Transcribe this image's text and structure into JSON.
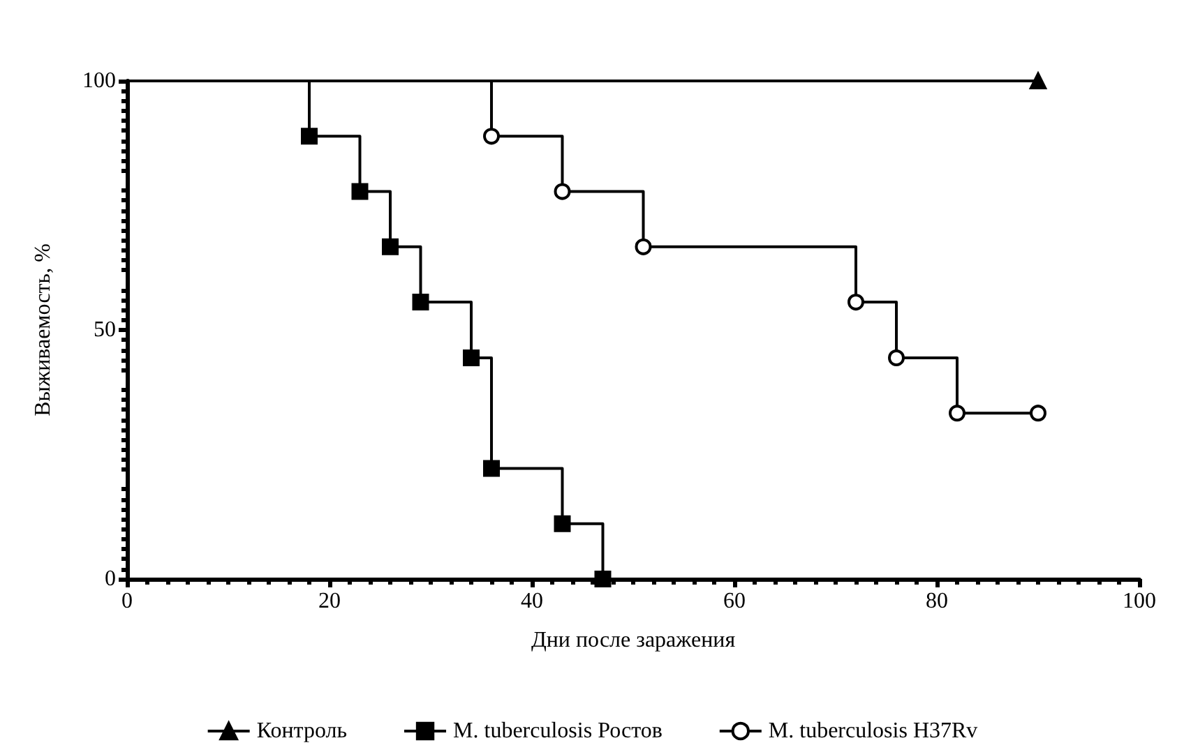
{
  "chart_data": {
    "type": "step",
    "xlabel": "Дни после заражения",
    "ylabel": "Выживаемость, %",
    "xlim": [
      0,
      100
    ],
    "xticks": [
      0,
      20,
      40,
      60,
      80,
      100
    ],
    "ylim": [
      0,
      100
    ],
    "yticks": [
      0,
      50,
      100
    ],
    "grid": false,
    "legend": "bottom",
    "line_style": "solid",
    "series": [
      {
        "name": "Контроль",
        "color": "#000000",
        "marker": "triangle",
        "x": [
          0,
          90
        ],
        "values": [
          100,
          100
        ]
      },
      {
        "name": "M. tuberculosis Ростов",
        "color": "#000000",
        "marker": "square",
        "x": [
          0,
          18,
          23,
          26,
          29,
          34,
          36,
          43,
          47
        ],
        "values": [
          100,
          88.9,
          77.8,
          66.7,
          55.6,
          44.4,
          22.2,
          11.1,
          0
        ]
      },
      {
        "name": "M. tuberculosis H37Rv",
        "color": "#000000",
        "marker": "circle",
        "x": [
          0,
          36,
          43,
          51,
          72,
          76,
          82,
          90
        ],
        "values": [
          100,
          88.9,
          77.8,
          66.7,
          55.6,
          44.4,
          33.3,
          33.3
        ]
      }
    ]
  }
}
